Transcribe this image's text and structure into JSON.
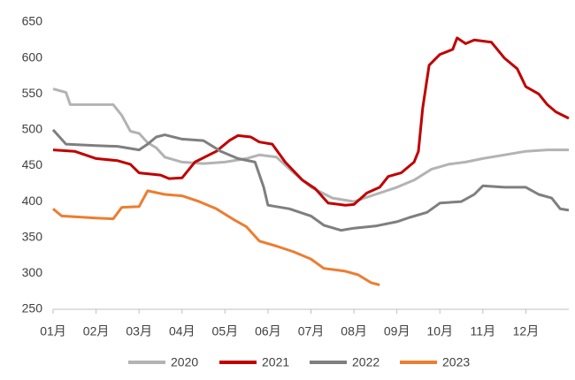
{
  "chart_data": {
    "type": "line",
    "xlim": [
      1,
      13
    ],
    "xticks": [
      {
        "value": 1,
        "label": "01月"
      },
      {
        "value": 2,
        "label": "02月"
      },
      {
        "value": 3,
        "label": "03月"
      },
      {
        "value": 4,
        "label": "04月"
      },
      {
        "value": 5,
        "label": "05月"
      },
      {
        "value": 6,
        "label": "06月"
      },
      {
        "value": 7,
        "label": "07月"
      },
      {
        "value": 8,
        "label": "08月"
      },
      {
        "value": 9,
        "label": "09月"
      },
      {
        "value": 10,
        "label": "10月"
      },
      {
        "value": 11,
        "label": "11月"
      },
      {
        "value": 12,
        "label": "12月"
      }
    ],
    "ylim": [
      250,
      650
    ],
    "yticks": [
      250,
      300,
      350,
      400,
      450,
      500,
      550,
      600,
      650
    ],
    "grid": false,
    "legend": "bottom",
    "series": [
      {
        "name": "2020",
        "color": "#b3b3b3",
        "x": [
          1,
          1.3,
          1.4,
          2.4,
          2.6,
          2.8,
          3.0,
          3.2,
          3.4,
          3.6,
          4.0,
          4.5,
          5.0,
          5.5,
          5.8,
          6.2,
          6.6,
          7.0,
          7.5,
          8.0,
          8.5,
          9.0,
          9.4,
          9.8,
          10.2,
          10.6,
          11.0,
          11.5,
          12.0,
          12.5,
          13
        ],
        "values": [
          557,
          552,
          535,
          535,
          520,
          498,
          495,
          482,
          475,
          462,
          455,
          453,
          455,
          460,
          465,
          462,
          440,
          420,
          405,
          400,
          410,
          420,
          430,
          445,
          452,
          455,
          460,
          465,
          470,
          472,
          472
        ]
      },
      {
        "name": "2021",
        "color": "#c00000",
        "x": [
          1,
          1.5,
          2.0,
          2.5,
          2.8,
          3.0,
          3.5,
          3.7,
          4.0,
          4.3,
          4.8,
          5.1,
          5.3,
          5.6,
          5.8,
          6.1,
          6.4,
          6.8,
          7.1,
          7.4,
          7.8,
          8.0,
          8.3,
          8.6,
          8.8,
          9.1,
          9.4,
          9.5,
          9.6,
          9.75,
          10.0,
          10.3,
          10.4,
          10.6,
          10.8,
          11.2,
          11.5,
          11.8,
          12.0,
          12.3,
          12.5,
          12.7,
          13
        ],
        "values": [
          472,
          470,
          460,
          457,
          452,
          440,
          437,
          432,
          433,
          455,
          470,
          485,
          492,
          490,
          483,
          480,
          455,
          430,
          418,
          398,
          395,
          396,
          412,
          420,
          435,
          440,
          455,
          470,
          530,
          590,
          605,
          612,
          628,
          620,
          625,
          622,
          600,
          585,
          560,
          550,
          535,
          525,
          516
        ]
      },
      {
        "name": "2022",
        "color": "#7f7f7f",
        "x": [
          1,
          1.3,
          2.0,
          2.5,
          3.0,
          3.2,
          3.4,
          3.6,
          4.0,
          4.5,
          4.9,
          5.3,
          5.7,
          5.9,
          6.0,
          6.5,
          7.0,
          7.3,
          7.7,
          8.0,
          8.5,
          9.0,
          9.3,
          9.7,
          10.0,
          10.5,
          10.8,
          11.0,
          11.5,
          12.0,
          12.3,
          12.6,
          12.8,
          13
        ],
        "values": [
          500,
          480,
          478,
          477,
          472,
          480,
          490,
          493,
          487,
          485,
          470,
          460,
          455,
          420,
          395,
          390,
          380,
          367,
          360,
          363,
          366,
          372,
          378,
          385,
          398,
          400,
          410,
          422,
          420,
          420,
          410,
          405,
          390,
          388
        ]
      },
      {
        "name": "2023",
        "color": "#ed7d31",
        "x": [
          1,
          1.2,
          2.0,
          2.4,
          2.6,
          3.0,
          3.2,
          3.6,
          4.0,
          4.4,
          4.8,
          5.2,
          5.5,
          5.8,
          6.2,
          6.6,
          7.0,
          7.3,
          7.8,
          8.1,
          8.4,
          8.6
        ],
        "values": [
          390,
          380,
          377,
          376,
          392,
          393,
          415,
          410,
          408,
          400,
          390,
          375,
          365,
          345,
          338,
          330,
          320,
          307,
          303,
          298,
          287,
          284
        ]
      }
    ]
  }
}
